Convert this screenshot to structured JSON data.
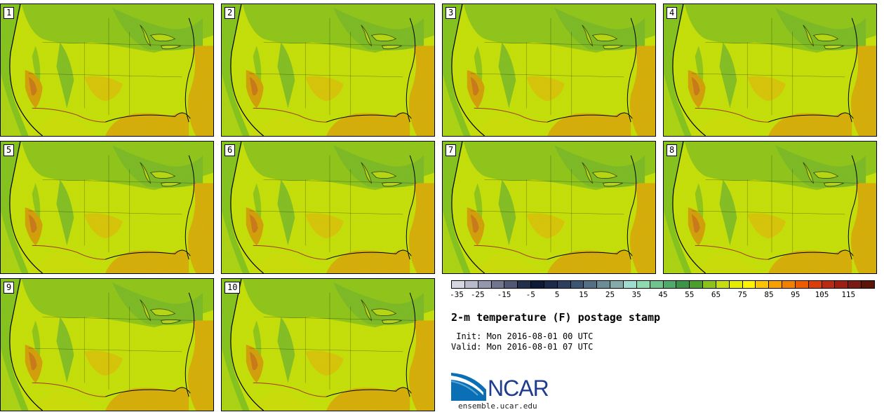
{
  "panels": [
    {
      "label": "1"
    },
    {
      "label": "2"
    },
    {
      "label": "3"
    },
    {
      "label": "4"
    },
    {
      "label": "5"
    },
    {
      "label": "6"
    },
    {
      "label": "7"
    },
    {
      "label": "8"
    },
    {
      "label": "9"
    },
    {
      "label": "10"
    }
  ],
  "colorbar": {
    "colors": [
      "#d6d6e0",
      "#b9bacb",
      "#9597ad",
      "#737690",
      "#545877",
      "#23304d",
      "#0f1a38",
      "#1c2b4b",
      "#2c3f60",
      "#3d5574",
      "#536f86",
      "#6b8d98",
      "#84aaa9",
      "#9edcd0",
      "#8fd9b0",
      "#6fc48e",
      "#4fab6a",
      "#3c9448",
      "#4aa02a",
      "#8cc31a",
      "#c6dd10",
      "#e6ec00",
      "#fff200",
      "#fcc400",
      "#f8a000",
      "#f48000",
      "#ef5c00",
      "#dc3e0a",
      "#bb2a12",
      "#9e1e14",
      "#7b1a10",
      "#5c1608"
    ],
    "ticks": [
      "-35",
      "-25",
      "-15",
      "-5",
      "5",
      "15",
      "25",
      "35",
      "45",
      "55",
      "65",
      "75",
      "85",
      "95",
      "105",
      "115"
    ]
  },
  "title": "2-m temperature (F) postage stamp",
  "init_line": " Init: Mon 2016-08-01 00 UTC",
  "valid_line": "Valid: Mon 2016-08-01 07 UTC",
  "logo_text": "NCAR",
  "logo_url": "ensemble.ucar.edu"
}
